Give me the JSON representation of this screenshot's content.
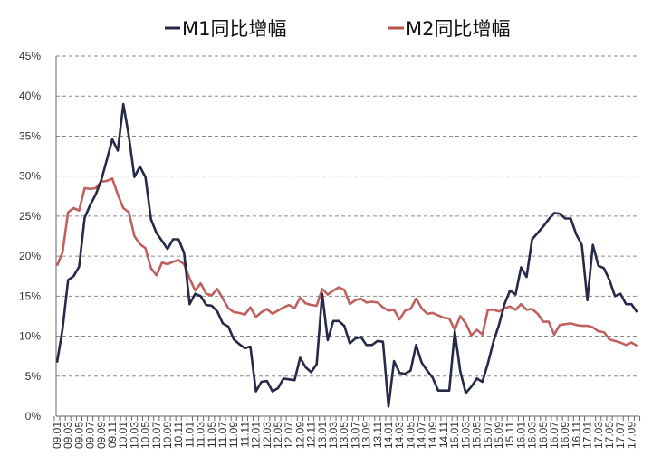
{
  "chart_data": {
    "type": "line",
    "title": "",
    "xlabel": "",
    "ylabel": "",
    "ylim": [
      0,
      45
    ],
    "yticks": [
      "0%",
      "5%",
      "10%",
      "15%",
      "20%",
      "25%",
      "30%",
      "35%",
      "40%",
      "45%"
    ],
    "ytick_values": [
      0,
      5,
      10,
      15,
      20,
      25,
      30,
      35,
      40,
      45
    ],
    "grid": "horizontal dashed",
    "legend_position": "top",
    "x_start": "09.01",
    "x_end": "17.10",
    "x_frequency": "monthly",
    "xtick_labels": [
      "09.01",
      "09.03",
      "09.05",
      "09.07",
      "09.09",
      "09.11",
      "10.01",
      "10.03",
      "10.05",
      "10.07",
      "10.09",
      "10.11",
      "11.01",
      "11.03",
      "11.05",
      "11.07",
      "11.09",
      "11.11",
      "12.01",
      "12.03",
      "12.05",
      "12.07",
      "12.09",
      "12.11",
      "13.01",
      "13.03",
      "13.05",
      "13.07",
      "13.09",
      "13.11",
      "14.01",
      "14.03",
      "14.05",
      "14.07",
      "14.09",
      "14.11",
      "15.01",
      "15.03",
      "15.05",
      "15.07",
      "15.09",
      "15.11",
      "16.01",
      "16.03",
      "16.05",
      "16.07",
      "16.09",
      "16.11",
      "17.01",
      "17.03",
      "17.05",
      "17.07",
      "17.09"
    ],
    "series": [
      {
        "name": "M1同比增幅",
        "color": "#262a48",
        "values": [
          6.7,
          10.9,
          17.0,
          17.5,
          18.7,
          24.8,
          26.4,
          27.7,
          29.5,
          32.0,
          34.6,
          33.2,
          39.0,
          35.0,
          29.9,
          31.2,
          29.9,
          24.6,
          22.9,
          21.9,
          20.9,
          22.1,
          22.1,
          20.4,
          14.0,
          15.3,
          15.0,
          13.9,
          13.8,
          13.1,
          11.6,
          11.2,
          9.6,
          9.0,
          8.5,
          8.7,
          3.1,
          4.3,
          4.4,
          3.1,
          3.5,
          4.7,
          4.6,
          4.5,
          7.3,
          6.1,
          5.5,
          6.5,
          15.3,
          9.5,
          11.9,
          11.9,
          11.3,
          9.1,
          9.7,
          9.9,
          8.9,
          8.9,
          9.4,
          9.3,
          1.2,
          6.9,
          5.4,
          5.3,
          5.7,
          8.9,
          6.7,
          5.7,
          4.8,
          3.2,
          3.2,
          3.2,
          10.6,
          5.6,
          2.9,
          3.7,
          4.7,
          4.3,
          6.6,
          9.3,
          11.4,
          14.0,
          15.7,
          15.2,
          18.6,
          17.4,
          22.1,
          22.9,
          23.7,
          24.6,
          25.4,
          25.3,
          24.7,
          24.7,
          22.7,
          21.4,
          14.5,
          21.4,
          18.8,
          18.5,
          17.0,
          15.0,
          15.3,
          14.0,
          14.0,
          13.0
        ]
      },
      {
        "name": "M2同比增幅",
        "color": "#b9504e",
        "values": [
          18.8,
          20.5,
          25.5,
          26.0,
          25.7,
          28.5,
          28.4,
          28.5,
          29.3,
          29.4,
          29.7,
          27.7,
          26.0,
          25.5,
          22.5,
          21.5,
          21.0,
          18.5,
          17.6,
          19.2,
          19.0,
          19.3,
          19.5,
          19.0,
          17.2,
          15.7,
          16.6,
          15.3,
          15.1,
          15.9,
          14.7,
          13.5,
          13.0,
          12.9,
          12.7,
          13.6,
          12.4,
          13.0,
          13.4,
          12.8,
          13.2,
          13.6,
          13.9,
          13.5,
          14.8,
          14.1,
          13.9,
          13.8,
          15.9,
          15.2,
          15.7,
          16.1,
          15.8,
          14.0,
          14.5,
          14.7,
          14.2,
          14.3,
          14.2,
          13.6,
          13.2,
          13.3,
          12.1,
          13.2,
          13.4,
          14.7,
          13.5,
          12.8,
          12.9,
          12.6,
          12.3,
          12.2,
          10.8,
          12.5,
          11.6,
          10.1,
          10.8,
          10.2,
          13.3,
          13.3,
          13.1,
          13.5,
          13.7,
          13.3,
          14.0,
          13.3,
          13.4,
          12.8,
          11.8,
          11.8,
          10.2,
          11.4,
          11.5,
          11.6,
          11.4,
          11.3,
          11.3,
          11.1,
          10.6,
          10.5,
          9.6,
          9.4,
          9.2,
          8.9,
          9.2,
          8.8
        ]
      }
    ]
  }
}
